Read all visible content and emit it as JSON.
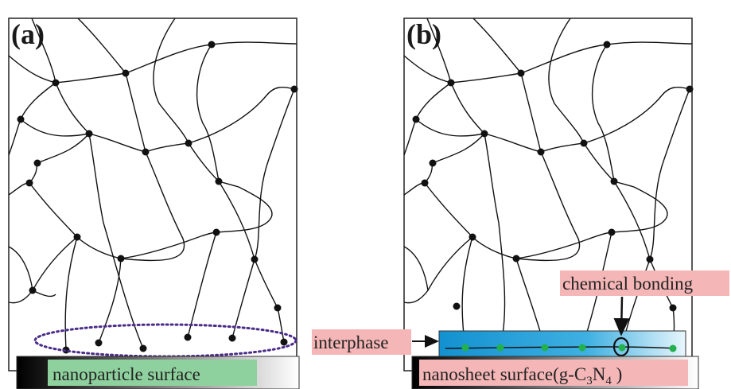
{
  "panels": [
    {
      "id": "a",
      "label": "(a)",
      "surface_label": "nanoparticle surface"
    },
    {
      "id": "b",
      "label": "(b)",
      "surface_label_prefix": "nanosheet surface(g-C",
      "surface_sub_1": "3",
      "surface_mid": "N",
      "surface_sub_2": "4",
      "surface_suffix": " )"
    }
  ],
  "annotations": {
    "interphase": "interphase",
    "chemical_bonding": "chemical bonding"
  },
  "colors": {
    "label_highlight_pink": "#f4b6b6",
    "label_highlight_green": "#8fd19e",
    "interphase_blue": "#1e9bd7",
    "bond_green": "#22b14c",
    "dotted_ellipse": "#4b2c8a"
  }
}
